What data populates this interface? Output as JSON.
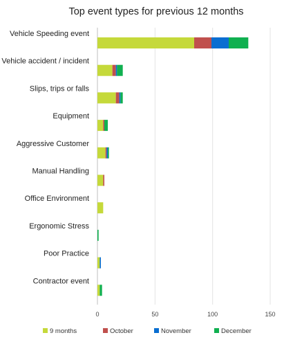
{
  "chart_data": {
    "type": "bar",
    "orientation": "horizontal",
    "stacked": true,
    "title": "Top event types for previous 12 months",
    "categories": [
      "Vehicle Speeding event",
      "Vehicle accident / incident",
      "Slips, trips or falls",
      "Equipment",
      "Aggressive Customer",
      "Manual Handling",
      "Office Environment",
      "Ergonomic Stress",
      "Poor Practice",
      "Contractor event"
    ],
    "series": [
      {
        "name": "9 months",
        "color": "#c5d93a",
        "values": [
          84,
          13,
          16,
          5,
          7,
          5,
          5,
          0,
          2,
          2
        ]
      },
      {
        "name": "October",
        "color": "#c0504d",
        "values": [
          15,
          3,
          3,
          1,
          1,
          1,
          0,
          0,
          0,
          0
        ]
      },
      {
        "name": "November",
        "color": "#0a6ed1",
        "values": [
          15,
          1,
          1,
          0,
          1,
          0,
          0,
          0,
          1,
          0
        ]
      },
      {
        "name": "December",
        "color": "#10b050",
        "values": [
          17,
          5,
          2,
          3,
          1,
          0,
          0,
          1,
          0,
          2
        ]
      }
    ],
    "xticks": [
      0,
      50,
      100,
      150
    ],
    "xlim": [
      0,
      150
    ],
    "grid": true,
    "legend_position": "bottom"
  }
}
